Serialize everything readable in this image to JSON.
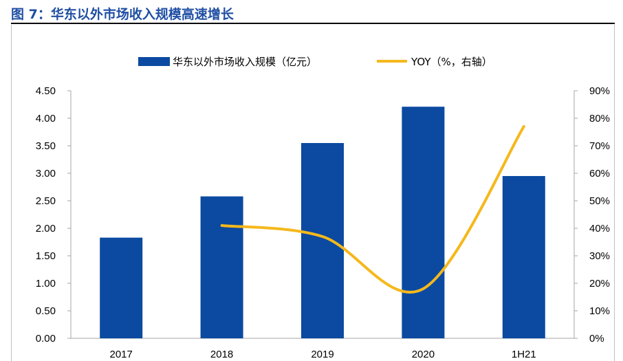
{
  "figure": {
    "title": "图 7：华东以外市场收入规模高速增长"
  },
  "colors": {
    "bar": "#0b4aa0",
    "line": "#f5b81c",
    "axis": "#a6a6a6",
    "title": "#1f4ea3"
  },
  "chart_data": {
    "type": "bar",
    "categories": [
      "2017",
      "2018",
      "2019",
      "2020",
      "1H21"
    ],
    "series": [
      {
        "name": "华东以外市场收入规模（亿元）",
        "type": "bar",
        "axis": "left",
        "values": [
          1.83,
          2.58,
          3.55,
          4.21,
          2.95
        ]
      },
      {
        "name": "YOY（%，右轴）",
        "type": "line",
        "axis": "right",
        "values": [
          null,
          41,
          37,
          18,
          77
        ]
      }
    ],
    "y_left": {
      "ylim": [
        0,
        4.5
      ],
      "ticks": [
        "0.00",
        "0.50",
        "1.00",
        "1.50",
        "2.00",
        "2.50",
        "3.00",
        "3.50",
        "4.00",
        "4.50"
      ]
    },
    "y_right": {
      "ylim": [
        0,
        90
      ],
      "ticks": [
        "0%",
        "10%",
        "20%",
        "30%",
        "40%",
        "50%",
        "60%",
        "70%",
        "80%",
        "90%"
      ]
    },
    "legend": "top-center",
    "grid": false
  }
}
